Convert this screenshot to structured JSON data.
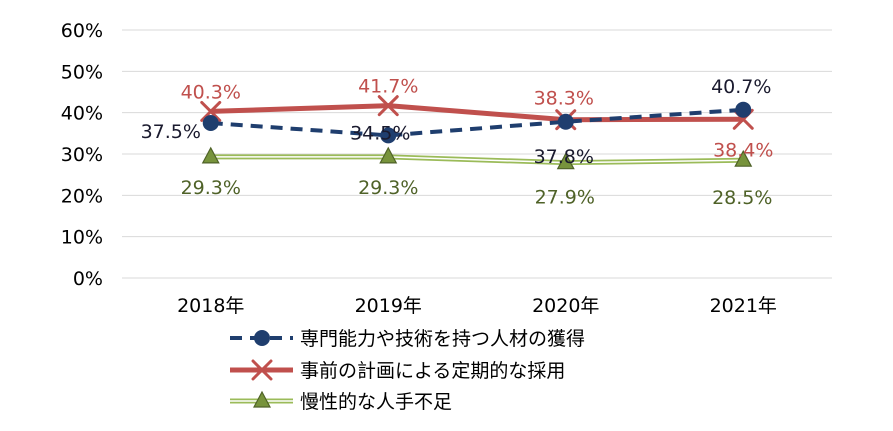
{
  "chart_data": {
    "type": "line",
    "categories": [
      "2018年",
      "2019年",
      "2020年",
      "2021年"
    ],
    "y_ticks": [
      "0%",
      "10%",
      "20%",
      "30%",
      "40%",
      "50%",
      "60%"
    ],
    "ylim": [
      0,
      60
    ],
    "grid": true,
    "legend_position": "bottom",
    "series": [
      {
        "name": "専門能力や技術を持つ人材の獲得",
        "values": [
          37.5,
          34.5,
          37.8,
          40.7
        ],
        "labels": [
          "37.5%",
          "34.5%",
          "37.8%",
          "40.7%"
        ],
        "color": "#1F3E6E",
        "label_color": "#1a1a2e",
        "marker": "circle",
        "style": "dashed"
      },
      {
        "name": "事前の計画による定期的な採用",
        "values": [
          40.3,
          41.7,
          38.3,
          38.4
        ],
        "labels": [
          "40.3%",
          "41.7%",
          "38.3%",
          "38.4%"
        ],
        "color": "#C0504D",
        "label_color": "#C0504D",
        "marker": "x",
        "style": "solid"
      },
      {
        "name": "慢性的な人手不足",
        "values": [
          29.3,
          29.3,
          27.9,
          28.5
        ],
        "labels": [
          "29.3%",
          "29.3%",
          "27.9%",
          "28.5%"
        ],
        "color": "#9BBB59",
        "label_color": "#4F6228",
        "marker": "triangle",
        "style": "double"
      }
    ]
  }
}
